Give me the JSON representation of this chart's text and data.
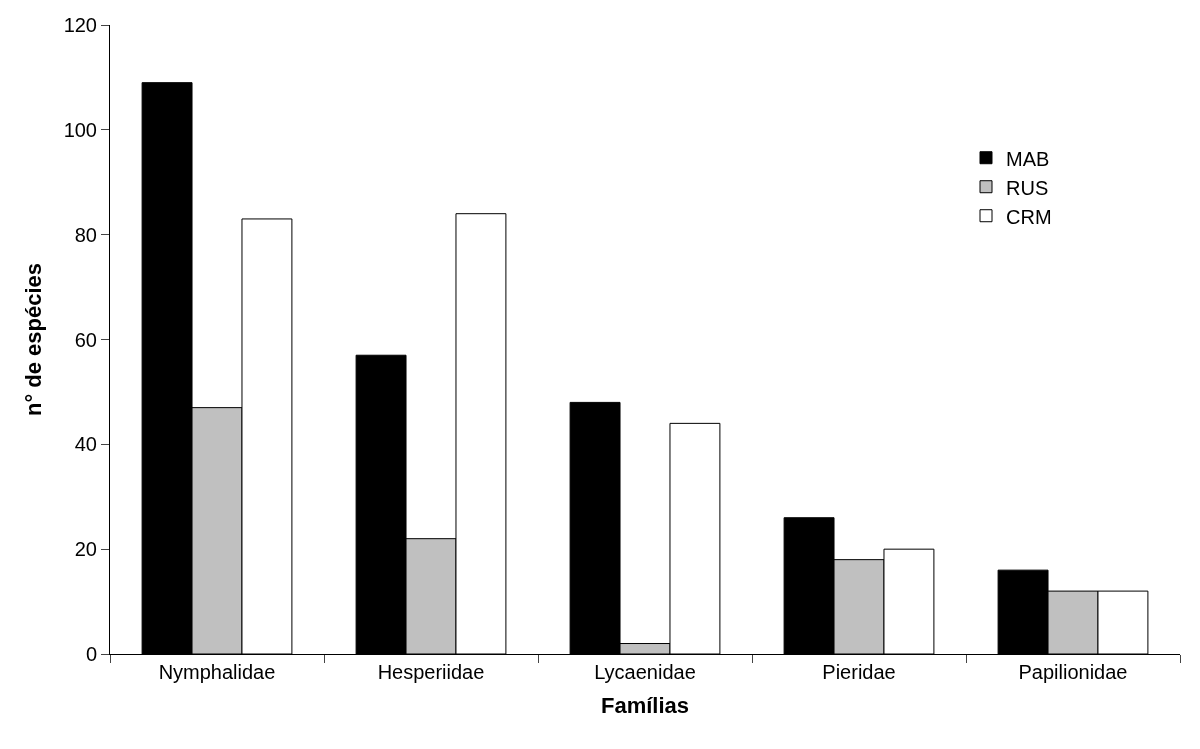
{
  "chart_data": {
    "type": "bar",
    "xlabel": "Famílias",
    "ylabel": "n° de espécies",
    "categories": [
      "Nymphalidae",
      "Hesperiidae",
      "Lycaenidae",
      "Pieridae",
      "Papilionidae"
    ],
    "series": [
      {
        "name": "MAB",
        "color": "#000000",
        "values": [
          109,
          57,
          48,
          26,
          16
        ]
      },
      {
        "name": "RUS",
        "color": "#c0c0c0",
        "values": [
          47,
          22,
          2,
          18,
          12
        ]
      },
      {
        "name": "CRM",
        "color": "#ffffff",
        "values": [
          83,
          84,
          44,
          20,
          12
        ]
      }
    ],
    "ylim": [
      0,
      120
    ],
    "yticks": [
      0,
      20,
      40,
      60,
      80,
      100,
      120
    ],
    "legend": "top right"
  }
}
